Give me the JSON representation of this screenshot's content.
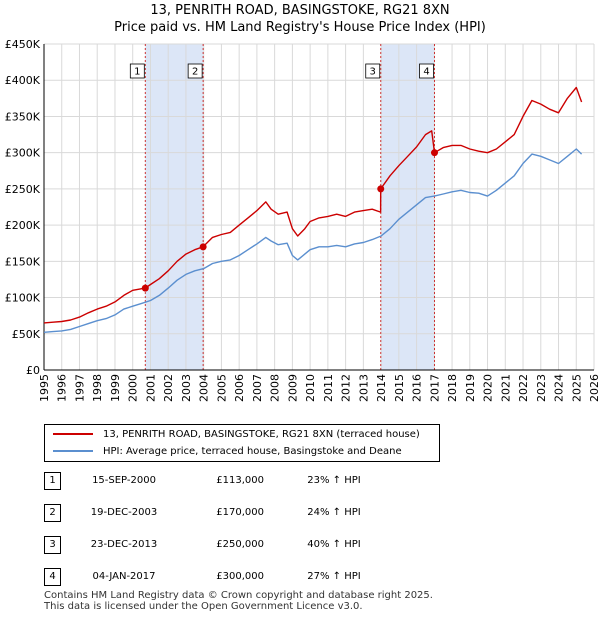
{
  "title": {
    "line1": "13, PENRITH ROAD, BASINGSTOKE, RG21 8XN",
    "line2": "Price paid vs. HM Land Registry's House Price Index (HPI)"
  },
  "colors": {
    "property": "#cc0000",
    "hpi": "#5b8fcf",
    "shade": "#dce6f7",
    "marker_line": "#cc3333",
    "grid": "#d9d9d9"
  },
  "chart_data": {
    "type": "line",
    "title": "13, PENRITH ROAD, BASINGSTOKE, RG21 8XN — Price paid vs. HM Land Registry's House Price Index (HPI)",
    "xlim": [
      1995,
      2026
    ],
    "ylim": [
      0,
      450000
    ],
    "y_ticks": [
      0,
      50000,
      100000,
      150000,
      200000,
      250000,
      300000,
      350000,
      400000,
      450000
    ],
    "y_tick_labels": [
      "£0",
      "£50K",
      "£100K",
      "£150K",
      "£200K",
      "£250K",
      "£300K",
      "£350K",
      "£400K",
      "£450K"
    ],
    "x_ticks": [
      1995,
      1996,
      1997,
      1998,
      1999,
      2000,
      2001,
      2002,
      2003,
      2004,
      2005,
      2006,
      2007,
      2008,
      2009,
      2010,
      2011,
      2012,
      2013,
      2014,
      2015,
      2016,
      2017,
      2018,
      2019,
      2020,
      2021,
      2022,
      2023,
      2024,
      2025,
      2026
    ],
    "shaded_ranges": [
      [
        2000.71,
        2003.97
      ],
      [
        2013.98,
        2017.01
      ]
    ],
    "series": [
      {
        "name": "13, PENRITH ROAD, BASINGSTOKE, RG21 8XN (terraced house)",
        "x": [
          1995.0,
          1995.5,
          1996.0,
          1996.5,
          1997.0,
          1997.5,
          1998.0,
          1998.5,
          1999.0,
          1999.5,
          2000.0,
          2000.71,
          2001.0,
          2001.5,
          2002.0,
          2002.5,
          2003.0,
          2003.5,
          2003.97,
          2004.5,
          2005.0,
          2005.5,
          2006.0,
          2006.5,
          2007.0,
          2007.5,
          2007.8,
          2008.2,
          2008.7,
          2009.0,
          2009.3,
          2009.7,
          2010.0,
          2010.5,
          2011.0,
          2011.5,
          2012.0,
          2012.5,
          2013.0,
          2013.5,
          2013.97,
          2013.98,
          2014.5,
          2015.0,
          2015.5,
          2016.0,
          2016.5,
          2016.85,
          2017.01,
          2017.5,
          2018.0,
          2018.5,
          2019.0,
          2019.5,
          2020.0,
          2020.5,
          2021.0,
          2021.5,
          2022.0,
          2022.5,
          2023.0,
          2023.5,
          2024.0,
          2024.5,
          2025.0,
          2025.3
        ],
        "values": [
          65000,
          66000,
          67000,
          69000,
          73000,
          79000,
          84000,
          88000,
          94000,
          103000,
          110000,
          113000,
          118000,
          126000,
          137000,
          150000,
          160000,
          166000,
          170000,
          183000,
          187000,
          190000,
          200000,
          210000,
          220000,
          232000,
          222000,
          215000,
          218000,
          195000,
          185000,
          195000,
          205000,
          210000,
          212000,
          215000,
          212000,
          218000,
          220000,
          222000,
          218000,
          250000,
          268000,
          282000,
          295000,
          308000,
          325000,
          330000,
          300000,
          307000,
          310000,
          310000,
          305000,
          302000,
          300000,
          305000,
          315000,
          325000,
          350000,
          372000,
          367000,
          360000,
          355000,
          375000,
          390000,
          370000
        ]
      },
      {
        "name": "HPI: Average price, terraced house, Basingstoke and Deane",
        "x": [
          1995.0,
          1995.5,
          1996.0,
          1996.5,
          1997.0,
          1997.5,
          1998.0,
          1998.5,
          1999.0,
          1999.5,
          2000.0,
          2000.5,
          2001.0,
          2001.5,
          2002.0,
          2002.5,
          2003.0,
          2003.5,
          2004.0,
          2004.5,
          2005.0,
          2005.5,
          2006.0,
          2006.5,
          2007.0,
          2007.5,
          2007.8,
          2008.2,
          2008.7,
          2009.0,
          2009.3,
          2009.7,
          2010.0,
          2010.5,
          2011.0,
          2011.5,
          2012.0,
          2012.5,
          2013.0,
          2013.5,
          2014.0,
          2014.5,
          2015.0,
          2015.5,
          2016.0,
          2016.5,
          2017.0,
          2017.5,
          2018.0,
          2018.5,
          2019.0,
          2019.5,
          2020.0,
          2020.5,
          2021.0,
          2021.5,
          2022.0,
          2022.5,
          2023.0,
          2023.5,
          2024.0,
          2024.5,
          2025.0,
          2025.3
        ],
        "values": [
          52000,
          53000,
          54000,
          56000,
          60000,
          64000,
          68000,
          71000,
          76000,
          84000,
          88000,
          92000,
          96000,
          103000,
          113000,
          124000,
          132000,
          137000,
          140000,
          147000,
          150000,
          152000,
          158000,
          166000,
          174000,
          183000,
          178000,
          173000,
          175000,
          158000,
          152000,
          160000,
          166000,
          170000,
          170000,
          172000,
          170000,
          174000,
          176000,
          180000,
          185000,
          195000,
          208000,
          218000,
          228000,
          238000,
          240000,
          243000,
          246000,
          248000,
          245000,
          244000,
          240000,
          248000,
          258000,
          268000,
          285000,
          298000,
          295000,
          290000,
          285000,
          295000,
          305000,
          298000
        ]
      }
    ],
    "annotations": [
      {
        "label": "1",
        "x": 2000.71,
        "value": 113000
      },
      {
        "label": "2",
        "x": 2003.97,
        "value": 170000
      },
      {
        "label": "3",
        "x": 2013.98,
        "value": 250000
      },
      {
        "label": "4",
        "x": 2017.01,
        "value": 300000
      }
    ]
  },
  "legend": {
    "items": [
      {
        "label": "13, PENRITH ROAD, BASINGSTOKE, RG21 8XN (terraced house)"
      },
      {
        "label": "HPI: Average price, terraced house, Basingstoke and Deane"
      }
    ]
  },
  "sales": [
    {
      "num": "1",
      "date": "15-SEP-2000",
      "price": "£113,000",
      "hpi": "23% ↑ HPI"
    },
    {
      "num": "2",
      "date": "19-DEC-2003",
      "price": "£170,000",
      "hpi": "24% ↑ HPI"
    },
    {
      "num": "3",
      "date": "23-DEC-2013",
      "price": "£250,000",
      "hpi": "40% ↑ HPI"
    },
    {
      "num": "4",
      "date": "04-JAN-2017",
      "price": "£300,000",
      "hpi": "27% ↑ HPI"
    }
  ],
  "footer": {
    "line1": "Contains HM Land Registry data © Crown copyright and database right 2025.",
    "line2": "This data is licensed under the Open Government Licence v3.0."
  }
}
